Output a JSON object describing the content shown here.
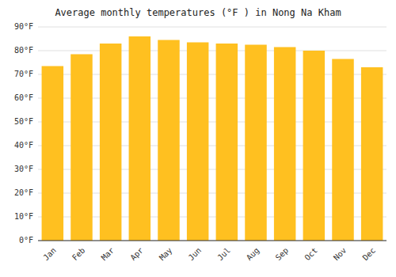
{
  "chart_data": {
    "type": "bar",
    "title": "Average monthly temperatures (°F ) in Nong Na Kham",
    "categories": [
      "Jan",
      "Feb",
      "Mar",
      "Apr",
      "May",
      "Jun",
      "Jul",
      "Aug",
      "Sep",
      "Oct",
      "Nov",
      "Dec"
    ],
    "values": [
      73.5,
      78.5,
      83.0,
      86.0,
      84.5,
      83.5,
      83.0,
      82.5,
      81.5,
      80.0,
      76.5,
      73.0
    ],
    "color": "#FFC020",
    "ylim": [
      0,
      90
    ],
    "yticks": [
      {
        "value": 0,
        "label": "0°F"
      },
      {
        "value": 10,
        "label": "10°F"
      },
      {
        "value": 20,
        "label": "20°F"
      },
      {
        "value": 30,
        "label": "30°F"
      },
      {
        "value": 40,
        "label": "40°F"
      },
      {
        "value": 50,
        "label": "50°F"
      },
      {
        "value": 60,
        "label": "60°F"
      },
      {
        "value": 70,
        "label": "70°F"
      },
      {
        "value": 80,
        "label": "80°F"
      },
      {
        "value": 90,
        "label": "90°F"
      }
    ],
    "grid": true
  }
}
